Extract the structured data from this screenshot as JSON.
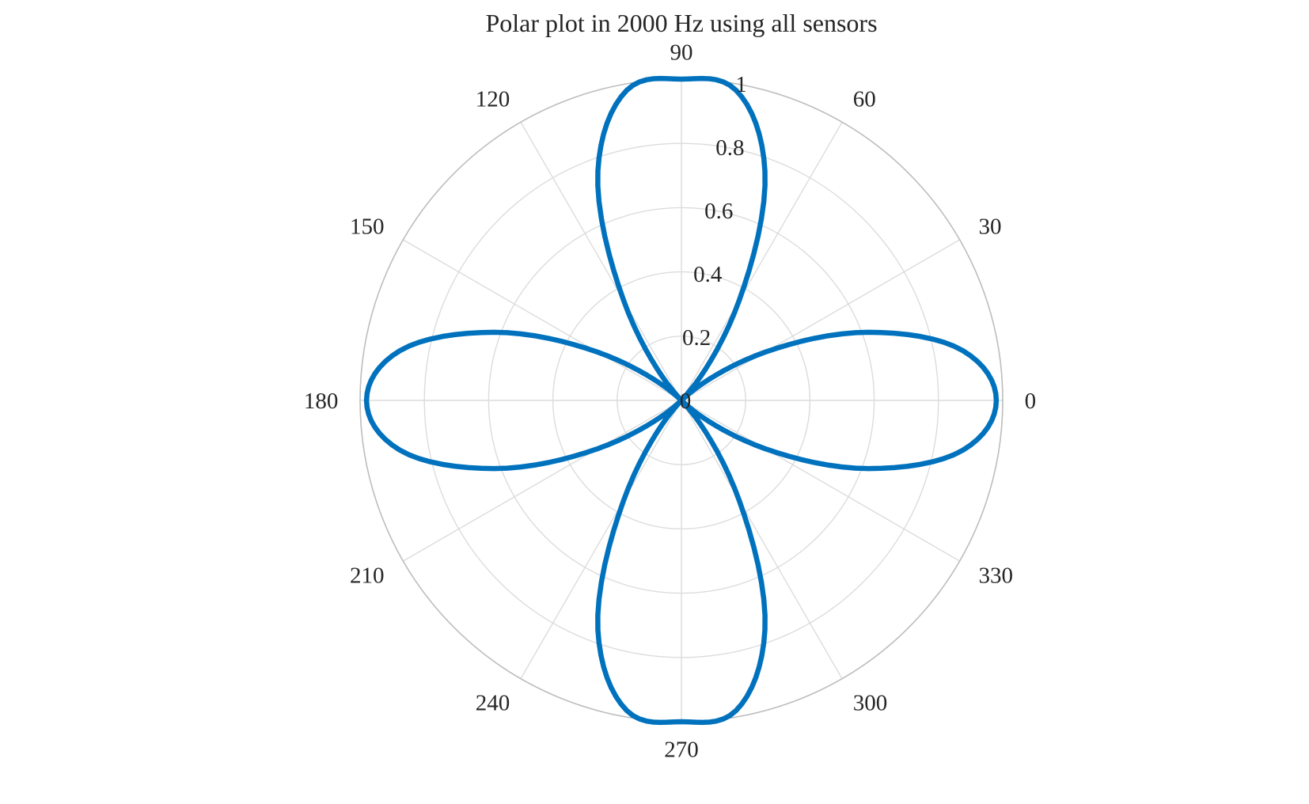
{
  "chart_data": {
    "type": "line",
    "coordinate_system": "polar",
    "title": "Polar plot in 2000 Hz using all sensors",
    "theta_unit": "degrees",
    "theta_zero_location": "east",
    "theta_direction": "counterclockwise",
    "theta_ticks": [
      0,
      30,
      60,
      90,
      120,
      150,
      180,
      210,
      240,
      270,
      300,
      330
    ],
    "theta_tick_labels": [
      "0",
      "30",
      "60",
      "90",
      "120",
      "150",
      "180",
      "210",
      "240",
      "270",
      "300",
      "330"
    ],
    "r_lim": [
      0,
      1
    ],
    "r_ticks": [
      0,
      0.2,
      0.4,
      0.6,
      0.8,
      1
    ],
    "r_tick_labels": [
      "0",
      "0.2",
      "0.4",
      "0.6",
      "0.8",
      "1"
    ],
    "r_tick_label_angle_deg": 80,
    "grid": true,
    "series": [
      {
        "color": "#0072BD",
        "theta": [
          0,
          10,
          20,
          30,
          40,
          45,
          50,
          60,
          70,
          80,
          90,
          100,
          110,
          120,
          130,
          135,
          140,
          150,
          160,
          170,
          180,
          190,
          200,
          210,
          220,
          225,
          230,
          240,
          250,
          260,
          270,
          280,
          290,
          300,
          310,
          315,
          320,
          330,
          340,
          350,
          360
        ],
        "r": [
          0.98,
          0.89,
          0.62,
          0.3,
          0.06,
          0.0,
          0.07,
          0.36,
          0.76,
          0.98,
          1.0,
          0.98,
          0.76,
          0.36,
          0.07,
          0.0,
          0.06,
          0.3,
          0.62,
          0.89,
          0.98,
          0.89,
          0.62,
          0.3,
          0.06,
          0.0,
          0.07,
          0.36,
          0.76,
          0.98,
          1.0,
          0.98,
          0.76,
          0.36,
          0.07,
          0.0,
          0.06,
          0.3,
          0.62,
          0.89,
          0.98
        ]
      }
    ]
  }
}
